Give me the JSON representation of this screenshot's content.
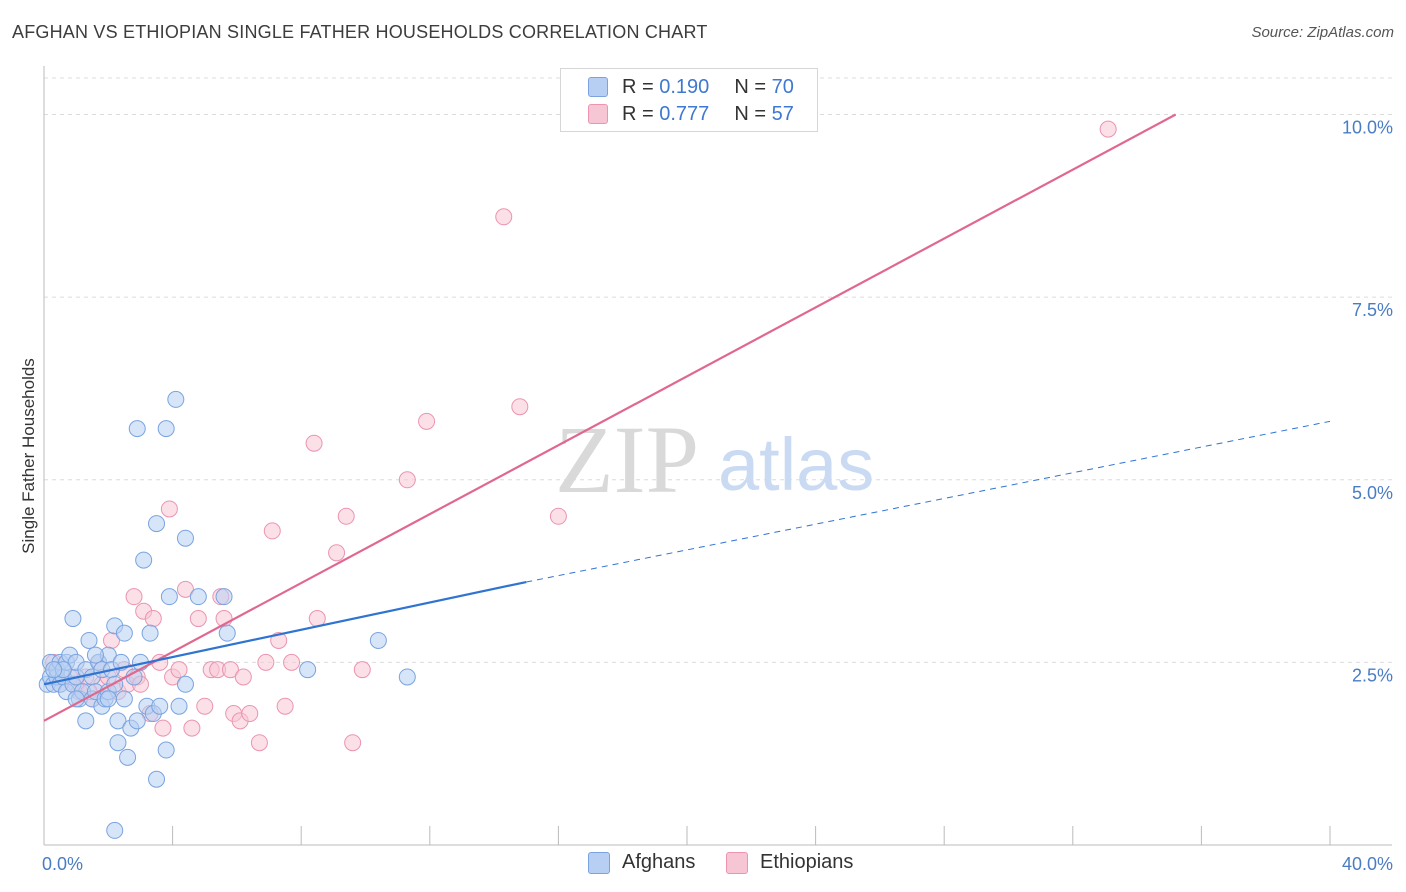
{
  "title": "AFGHAN VS ETHIOPIAN SINGLE FATHER HOUSEHOLDS CORRELATION CHART",
  "source": "Source: ZipAtlas.com",
  "watermark": {
    "zip": "ZIP",
    "atlas": "atlas"
  },
  "legend": {
    "rows": [
      {
        "r_label": "R =",
        "r_value": "0.190",
        "n_label": "N =",
        "n_value": "70"
      },
      {
        "r_label": "R =",
        "r_value": "0.777",
        "n_label": "N =",
        "n_value": "57"
      }
    ]
  },
  "bottom_legend": {
    "afghans": "Afghans",
    "ethiopians": "Ethiopians"
  },
  "colors": {
    "afghans_fill": "#b7cff2",
    "afghans_stroke": "#7aa3e0",
    "afghans_line": "#2f74d0",
    "ethiopians_fill": "#f7c6d5",
    "ethiopians_stroke": "#ec94b0",
    "ethiopians_line": "#e0688f",
    "tick_label": "#4a7cc4",
    "grid": "#dcdcdc"
  },
  "chart_data": {
    "type": "scatter",
    "title": "AFGHAN VS ETHIOPIAN SINGLE FATHER HOUSEHOLDS CORRELATION CHART",
    "xlabel": "",
    "ylabel": "Single Father Households",
    "xlim": [
      0,
      40
    ],
    "ylim": [
      0,
      10.5
    ],
    "x_tick_labels": [
      {
        "value": 0,
        "label": "0.0%"
      },
      {
        "value": 40,
        "label": "40.0%"
      }
    ],
    "y_tick_labels": [
      {
        "value": 2.5,
        "label": "2.5%"
      },
      {
        "value": 5.0,
        "label": "5.0%"
      },
      {
        "value": 7.5,
        "label": "7.5%"
      },
      {
        "value": 10.0,
        "label": "10.0%"
      }
    ],
    "series": [
      {
        "name": "Afghans",
        "r": 0.19,
        "n": 70,
        "trend": {
          "x0": 0,
          "y0": 2.2,
          "x1": 15.0,
          "y1": 3.6,
          "dash_to_x": 40,
          "dash_to_y": 5.8
        },
        "points": [
          [
            0.1,
            2.2
          ],
          [
            0.2,
            2.3
          ],
          [
            0.2,
            2.5
          ],
          [
            0.3,
            2.2
          ],
          [
            0.4,
            2.3
          ],
          [
            0.4,
            2.4
          ],
          [
            0.5,
            2.2
          ],
          [
            0.5,
            2.5
          ],
          [
            0.6,
            2.3
          ],
          [
            0.7,
            2.1
          ],
          [
            0.7,
            2.5
          ],
          [
            0.8,
            2.6
          ],
          [
            0.9,
            2.2
          ],
          [
            0.9,
            3.1
          ],
          [
            1.0,
            2.3
          ],
          [
            1.0,
            2.5
          ],
          [
            1.1,
            2.0
          ],
          [
            1.2,
            2.1
          ],
          [
            1.3,
            1.7
          ],
          [
            1.3,
            2.4
          ],
          [
            1.4,
            2.8
          ],
          [
            1.5,
            2.0
          ],
          [
            1.5,
            2.3
          ],
          [
            1.6,
            2.1
          ],
          [
            1.7,
            2.5
          ],
          [
            1.8,
            1.9
          ],
          [
            1.8,
            2.4
          ],
          [
            1.9,
            2.0
          ],
          [
            2.0,
            2.1
          ],
          [
            2.0,
            2.6
          ],
          [
            2.1,
            2.4
          ],
          [
            2.2,
            2.2
          ],
          [
            2.2,
            3.0
          ],
          [
            2.3,
            1.4
          ],
          [
            2.3,
            1.7
          ],
          [
            2.4,
            2.5
          ],
          [
            2.5,
            2.9
          ],
          [
            2.5,
            2.0
          ],
          [
            2.6,
            1.2
          ],
          [
            2.7,
            1.6
          ],
          [
            2.8,
            2.3
          ],
          [
            2.9,
            1.7
          ],
          [
            2.9,
            5.7
          ],
          [
            3.0,
            2.5
          ],
          [
            3.1,
            3.9
          ],
          [
            3.2,
            1.9
          ],
          [
            3.3,
            2.9
          ],
          [
            3.4,
            1.8
          ],
          [
            3.5,
            4.4
          ],
          [
            3.5,
            0.9
          ],
          [
            3.6,
            1.9
          ],
          [
            3.8,
            5.7
          ],
          [
            3.8,
            1.3
          ],
          [
            3.9,
            3.4
          ],
          [
            4.1,
            6.1
          ],
          [
            4.2,
            1.9
          ],
          [
            4.4,
            4.2
          ],
          [
            4.4,
            2.2
          ],
          [
            4.8,
            3.4
          ],
          [
            5.6,
            3.4
          ],
          [
            5.7,
            2.9
          ],
          [
            8.2,
            2.4
          ],
          [
            10.4,
            2.8
          ],
          [
            11.3,
            2.3
          ],
          [
            2.2,
            0.2
          ],
          [
            1.0,
            2.0
          ],
          [
            0.6,
            2.4
          ],
          [
            1.6,
            2.6
          ],
          [
            2.0,
            2.0
          ],
          [
            0.3,
            2.4
          ]
        ]
      },
      {
        "name": "Ethiopians",
        "r": 0.777,
        "n": 57,
        "trend": {
          "x0": 0,
          "y0": 1.7,
          "x1": 35.2,
          "y1": 10.0
        },
        "points": [
          [
            0.3,
            2.5
          ],
          [
            0.5,
            2.2
          ],
          [
            0.8,
            2.3
          ],
          [
            1.0,
            2.2
          ],
          [
            1.1,
            2.1
          ],
          [
            1.3,
            2.3
          ],
          [
            1.5,
            2.0
          ],
          [
            1.7,
            2.5
          ],
          [
            1.8,
            2.2
          ],
          [
            2.0,
            2.3
          ],
          [
            2.1,
            2.8
          ],
          [
            2.3,
            2.1
          ],
          [
            2.5,
            2.4
          ],
          [
            2.6,
            2.2
          ],
          [
            2.8,
            3.4
          ],
          [
            2.9,
            2.3
          ],
          [
            3.0,
            2.2
          ],
          [
            3.1,
            3.2
          ],
          [
            3.3,
            1.8
          ],
          [
            3.4,
            3.1
          ],
          [
            3.6,
            2.5
          ],
          [
            3.7,
            1.6
          ],
          [
            3.9,
            4.6
          ],
          [
            4.0,
            2.3
          ],
          [
            4.2,
            2.4
          ],
          [
            4.4,
            3.5
          ],
          [
            4.6,
            1.6
          ],
          [
            4.8,
            3.1
          ],
          [
            5.0,
            1.9
          ],
          [
            5.2,
            2.4
          ],
          [
            5.4,
            2.4
          ],
          [
            5.5,
            3.4
          ],
          [
            5.6,
            3.1
          ],
          [
            5.8,
            2.4
          ],
          [
            5.9,
            1.8
          ],
          [
            6.1,
            1.7
          ],
          [
            6.2,
            2.3
          ],
          [
            6.4,
            1.8
          ],
          [
            6.7,
            1.4
          ],
          [
            6.9,
            2.5
          ],
          [
            7.1,
            4.3
          ],
          [
            7.3,
            2.8
          ],
          [
            7.5,
            1.9
          ],
          [
            7.7,
            2.5
          ],
          [
            8.4,
            5.5
          ],
          [
            8.5,
            3.1
          ],
          [
            9.1,
            4.0
          ],
          [
            9.4,
            4.5
          ],
          [
            9.6,
            1.4
          ],
          [
            9.9,
            2.4
          ],
          [
            11.3,
            5.0
          ],
          [
            11.9,
            5.8
          ],
          [
            14.3,
            8.6
          ],
          [
            14.8,
            6.0
          ],
          [
            16.0,
            4.5
          ],
          [
            33.1,
            9.8
          ],
          [
            1.4,
            2.1
          ]
        ]
      }
    ]
  }
}
